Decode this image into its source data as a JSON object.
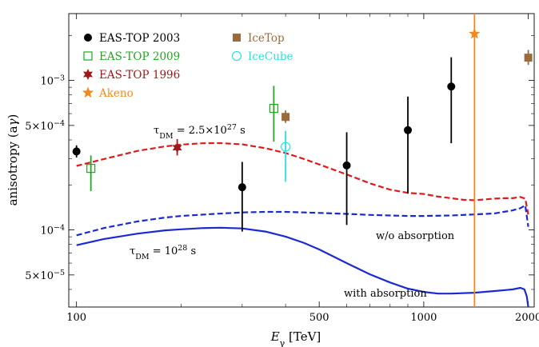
{
  "chart_data": {
    "type": "scatter",
    "xscale": "log",
    "yscale": "log",
    "xlim": [
      95,
      2080
    ],
    "ylim": [
      3.05e-05,
      0.0028
    ],
    "xlabel_main": "E",
    "xlabel_sub": "γ",
    "xlabel_unit": " [TeV]",
    "ylabel_main": "anisotropy (a",
    "ylabel_sub": "γ",
    "ylabel_close": ")",
    "xticks": [
      {
        "value": 100,
        "label": "100"
      },
      {
        "value": 500,
        "label": "500"
      },
      {
        "value": 1000,
        "label": "1000"
      },
      {
        "value": 2000,
        "label": "2000"
      }
    ],
    "yticks": [
      {
        "value": 5e-05,
        "mant": "5×10",
        "exp": "−5"
      },
      {
        "value": 0.0001,
        "mant": "10",
        "exp": "−4"
      },
      {
        "value": 0.0005,
        "mant": "5×10",
        "exp": "−4"
      },
      {
        "value": 0.001,
        "mant": "10",
        "exp": "−3"
      }
    ],
    "xminor": [
      200,
      300,
      400,
      600,
      700,
      800,
      900
    ],
    "yminor": [
      4e-05,
      6e-05,
      7e-05,
      8e-05,
      9e-05,
      0.0002,
      0.0003,
      0.0004,
      0.0006,
      0.0007,
      0.0008,
      0.0009,
      0.002
    ],
    "series": [
      {
        "name": "EAS-TOP 2003",
        "marker": "filled-circle",
        "color": "#000000",
        "points": [
          {
            "x": 100,
            "y": 0.000335,
            "lo": 0.000305,
            "hi": 0.000368
          },
          {
            "x": 300,
            "y": 0.000193,
            "lo": 9.75e-05,
            "hi": 0.000285
          },
          {
            "x": 600,
            "y": 0.00027,
            "lo": 0.000108,
            "hi": 0.00045
          },
          {
            "x": 900,
            "y": 0.000465,
            "lo": 0.000175,
            "hi": 0.00078
          },
          {
            "x": 1200,
            "y": 0.00091,
            "lo": 0.00038,
            "hi": 0.00143
          }
        ]
      },
      {
        "name": "EAS-TOP 2009",
        "marker": "open-square",
        "color": "#1fa81f",
        "points": [
          {
            "x": 110,
            "y": 0.000258,
            "lo": 0.000182,
            "hi": 0.000315
          },
          {
            "x": 370,
            "y": 0.00065,
            "lo": 0.00039,
            "hi": 0.00092
          }
        ]
      },
      {
        "name": "EAS-TOP 1996",
        "marker": "star6",
        "color": "#a01818",
        "points": [
          {
            "x": 195,
            "y": 0.000355,
            "lo": 0.000315,
            "hi": 0.000405
          }
        ]
      },
      {
        "name": "Akeno",
        "marker": "star5",
        "color": "#f08a1c",
        "points": [
          {
            "x": 1400,
            "y": 0.00205,
            "lo": 3.05e-05,
            "hi": 0.0028
          }
        ]
      },
      {
        "name": "IceTop",
        "marker": "filled-square",
        "color": "#9a6a3a",
        "points": [
          {
            "x": 400,
            "y": 0.00057,
            "lo": 0.00052,
            "hi": 0.00063
          },
          {
            "x": 2000,
            "y": 0.00142,
            "lo": 0.00127,
            "hi": 0.0016
          }
        ]
      },
      {
        "name": "IceCube",
        "marker": "open-circle",
        "color": "#2de0e0",
        "points": [
          {
            "x": 400,
            "y": 0.00036,
            "lo": 0.00021,
            "hi": 0.00046
          }
        ]
      }
    ],
    "curves": [
      {
        "name": "tau_DM = 2.5e27 s",
        "color": "#e01a1a",
        "style": "dashed",
        "x": [
          100,
          120,
          150,
          180,
          200,
          230,
          260,
          300,
          350,
          400,
          450,
          500,
          600,
          700,
          800,
          900,
          1000,
          1100,
          1200,
          1300,
          1400,
          1500,
          1600,
          1700,
          1800,
          1900,
          1960,
          2000
        ],
        "y": [
          0.000268,
          0.000298,
          0.000338,
          0.000362,
          0.000372,
          0.00038,
          0.000381,
          0.000374,
          0.000352,
          0.000327,
          0.000299,
          0.000274,
          0.000235,
          0.000205,
          0.000186,
          0.000177,
          0.000174,
          0.000167,
          0.000163,
          0.000159,
          0.000158,
          0.00016,
          0.000162,
          0.000163,
          0.000163,
          0.000166,
          0.000162,
          0.000127
        ]
      },
      {
        "name": "w/o absorption",
        "color": "#1a2ad0",
        "style": "dashed",
        "x": [
          100,
          120,
          150,
          180,
          200,
          250,
          300,
          350,
          400,
          450,
          500,
          600,
          700,
          800,
          900,
          1000,
          1200,
          1400,
          1600,
          1800,
          1900,
          1960,
          2000
        ],
        "y": [
          9.2e-05,
          0.000103,
          0.000114,
          0.000121,
          0.000124,
          0.000128,
          0.000131,
          0.000132,
          0.000132,
          0.000131,
          0.00013,
          0.000128,
          0.000126,
          0.000125,
          0.000124,
          0.000124,
          0.000125,
          0.000127,
          0.000129,
          0.000135,
          0.00014,
          0.000146,
          0.000105
        ]
      },
      {
        "name": "with absorption",
        "color": "#1a2ad0",
        "style": "solid",
        "x": [
          100,
          120,
          150,
          180,
          200,
          230,
          260,
          300,
          350,
          400,
          450,
          500,
          600,
          700,
          800,
          900,
          1000,
          1100,
          1200,
          1400,
          1600,
          1800,
          1900,
          1950,
          1980,
          2000
        ],
        "y": [
          7.9e-05,
          8.7e-05,
          9.45e-05,
          9.93e-05,
          0.000101,
          0.0001028,
          0.0001035,
          0.0001023,
          9.75e-05,
          9.03e-05,
          8.22e-05,
          7.4e-05,
          6e-05,
          5.05e-05,
          4.45e-05,
          4.05e-05,
          3.85e-05,
          3.75e-05,
          3.75e-05,
          3.8e-05,
          3.9e-05,
          4e-05,
          4.1e-05,
          4e-05,
          3.6e-05,
          3.05e-05
        ]
      }
    ],
    "annotations": [
      {
        "name": "tau-2.5e27",
        "color": "#e01a1a",
        "tau": "τ",
        "sub": "DM",
        "pre": " = 2.5×10",
        "sup": "27",
        "post": " s"
      },
      {
        "name": "tau-1e28",
        "color": "#1a2ad0",
        "tau": "τ",
        "sub": "DM",
        "pre": " = 10",
        "sup": "28",
        "post": " s"
      },
      {
        "name": "wo-absorption",
        "color": "#1a2ad0",
        "text": "w/o absorption"
      },
      {
        "name": "with-absorption",
        "color": "#1a2ad0",
        "text": "with absorption"
      }
    ],
    "legend": {
      "placement": "top-left",
      "columns": 2
    }
  }
}
